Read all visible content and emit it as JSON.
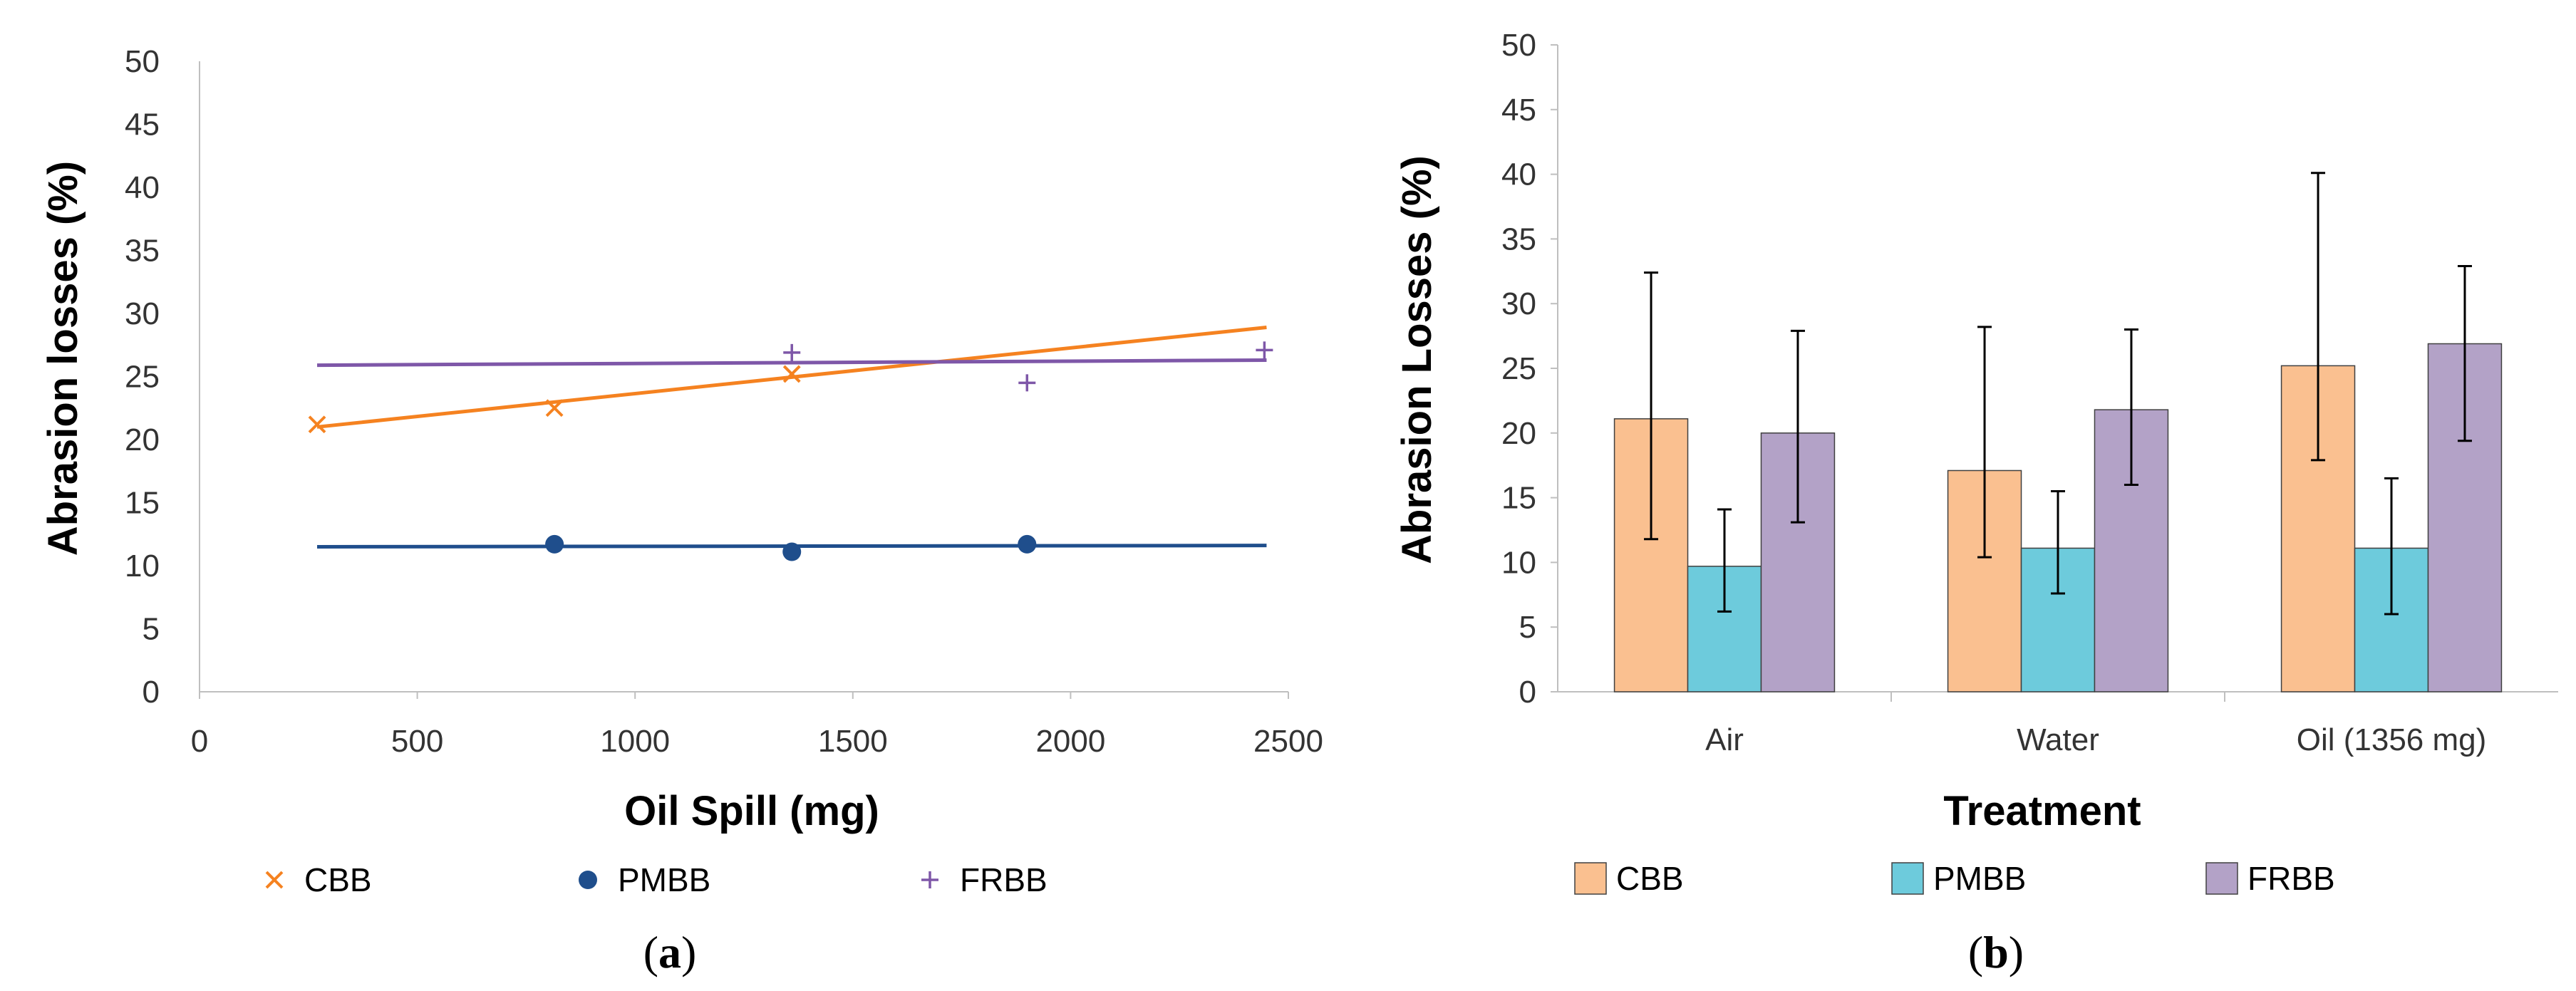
{
  "chart_data": [
    {
      "type": "scatter",
      "caption": "a",
      "xlabel": "Oil Spill (mg)",
      "ylabel": "Abrasion losses (%)",
      "xlim": [
        0,
        2500
      ],
      "ylim": [
        0,
        50
      ],
      "xticks": [
        0,
        500,
        1000,
        1500,
        2000,
        2500
      ],
      "yticks": [
        0,
        5,
        10,
        15,
        20,
        25,
        30,
        35,
        40,
        45,
        50
      ],
      "grid": false,
      "legend_position": "bottom",
      "series": [
        {
          "name": "CBB",
          "marker": "x",
          "color": "#F58220",
          "points": [
            [
              270,
              21.2
            ],
            [
              815,
              22.5
            ],
            [
              1360,
              25.2
            ]
          ],
          "trendline": [
            [
              270,
              21.0
            ],
            [
              2450,
              28.9
            ]
          ]
        },
        {
          "name": "PMBB",
          "marker": "circle",
          "color": "#1F4E8C",
          "points": [
            [
              815,
              11.7
            ],
            [
              1360,
              11.1
            ],
            [
              1900,
              11.7
            ]
          ],
          "trendline": [
            [
              270,
              11.5
            ],
            [
              2450,
              11.6
            ]
          ]
        },
        {
          "name": "FRBB",
          "marker": "plus",
          "color": "#7E57A8",
          "points": [
            [
              1360,
              26.9
            ],
            [
              1900,
              24.5
            ],
            [
              2445,
              27.1
            ]
          ],
          "trendline": [
            [
              270,
              25.9
            ],
            [
              2450,
              26.3
            ]
          ]
        }
      ]
    },
    {
      "type": "bar",
      "caption": "b",
      "xlabel": "Treatment",
      "ylabel": "Abrasion Losses (%)",
      "ylim": [
        0,
        50
      ],
      "yticks": [
        0,
        5,
        10,
        15,
        20,
        25,
        30,
        35,
        40,
        45,
        50
      ],
      "grid": false,
      "legend_position": "bottom",
      "categories": [
        "Air",
        "Water",
        "Oil (1356 mg)"
      ],
      "series": [
        {
          "name": "CBB",
          "color": "#FAC090",
          "values": [
            21.1,
            17.1,
            25.2
          ],
          "errors": [
            [
              11.8,
              32.4
            ],
            [
              10.4,
              28.2
            ],
            [
              17.9,
              40.1
            ]
          ]
        },
        {
          "name": "PMBB",
          "color": "#6DCBDC",
          "values": [
            9.7,
            11.1,
            11.1
          ],
          "errors": [
            [
              6.2,
              14.1
            ],
            [
              7.6,
              15.5
            ],
            [
              6.0,
              16.5
            ]
          ]
        },
        {
          "name": "FRBB",
          "color": "#B3A2C7",
          "values": [
            20.0,
            21.8,
            26.9
          ],
          "errors": [
            [
              13.1,
              27.9
            ],
            [
              16.0,
              28.0
            ],
            [
              19.4,
              32.9
            ]
          ]
        }
      ]
    }
  ]
}
